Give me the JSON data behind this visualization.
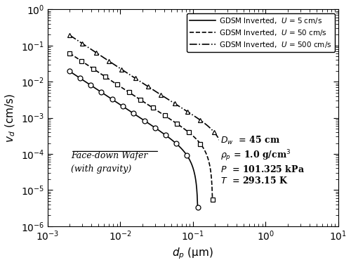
{
  "xlabel_text": "$d_p$ (μm)",
  "ylabel_text": "$v_d$ (cm/s)",
  "xlim": [
    0.001,
    10
  ],
  "ylim": [
    1e-06,
    1.0
  ],
  "legend_entries": [
    "GDSM Inverted,  $U$ = 5 cm/s",
    "GDSM Inverted,  $U$ = 50 cm/s",
    "GDSM Inverted,  $U$ = 500 cm/s"
  ],
  "line_styles": [
    "-",
    "--",
    "-."
  ],
  "markers": [
    "o",
    "s",
    "^"
  ],
  "U_values": [
    5,
    50,
    500
  ],
  "Dw_cm": 45,
  "rho_p_gcc": 1.0,
  "P_kPa": 101.325,
  "T_K": 293.15,
  "line_color": "#000000",
  "n_markers": 13
}
